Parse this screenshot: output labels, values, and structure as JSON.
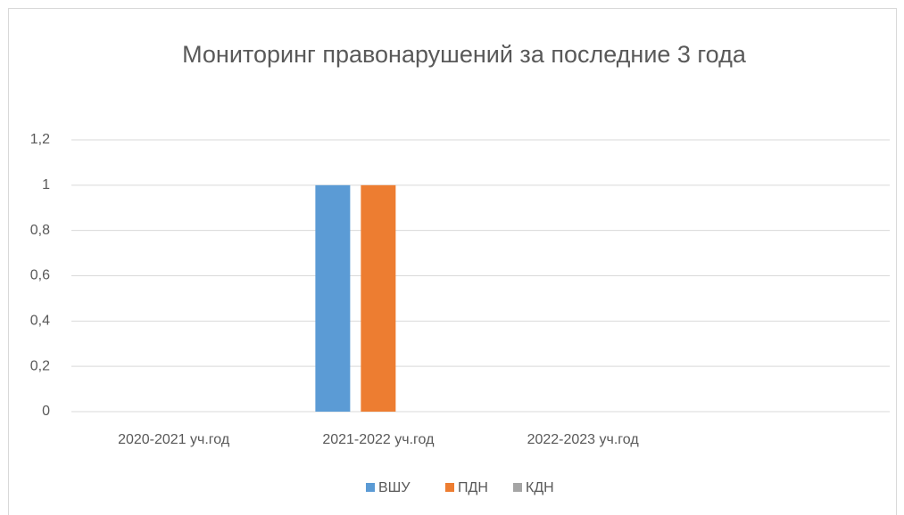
{
  "chart_data": {
    "type": "bar",
    "title": "Мониторинг правонарушений за последние 3 года",
    "categories": [
      "2020-2021 уч.год",
      "2021-2022 уч.год",
      "2022-2023 уч.год",
      null
    ],
    "series": [
      {
        "name": "ВШУ",
        "color": "#5b9bd5",
        "values": [
          0,
          1,
          0,
          null
        ]
      },
      {
        "name": "ПДН",
        "color": "#ed7d31",
        "values": [
          0,
          1,
          0,
          null
        ]
      },
      {
        "name": "КДН",
        "color": "#a5a5a5",
        "values": [
          0,
          0,
          0,
          null
        ]
      }
    ],
    "ylim": [
      0,
      1.2
    ],
    "yticks": [
      0,
      {
        "value": 0.2,
        "label": "0,2"
      },
      {
        "value": 0.4,
        "label": "0,4"
      },
      {
        "value": 0.6,
        "label": "0,6"
      },
      {
        "value": 0.8,
        "label": "0,8"
      },
      1,
      {
        "value": 1.2,
        "label": "1,2"
      }
    ],
    "grid": true,
    "legend": "bottom"
  }
}
